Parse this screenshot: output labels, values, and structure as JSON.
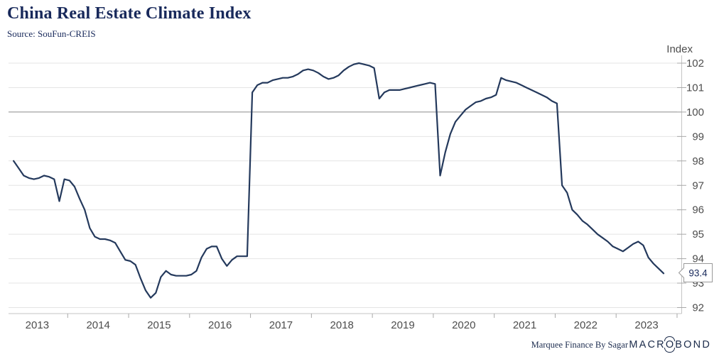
{
  "header": {
    "title": "China Real Estate Climate Index",
    "source": "Source: SouFun-CREIS"
  },
  "chart_data": {
    "type": "line",
    "title": "China Real Estate Climate Index",
    "xlabel": "",
    "ylabel": "Index",
    "ylim": [
      91.75,
      102.25
    ],
    "y_ticks": [
      92,
      93,
      94,
      95,
      96,
      97,
      98,
      99,
      100,
      101,
      102
    ],
    "emphasized_gridline": 100,
    "grid": true,
    "legend_position": "none",
    "x_tick_labels": [
      "2013",
      "2014",
      "2015",
      "2016",
      "2017",
      "2018",
      "2019",
      "2020",
      "2021",
      "2022",
      "2023"
    ],
    "frequency": "monthly",
    "start": "2013-02",
    "end": "2023-10",
    "series": [
      {
        "name": "China Real Estate Climate Index",
        "values": [
          98.0,
          97.7,
          97.4,
          97.3,
          97.25,
          97.3,
          97.4,
          97.35,
          97.25,
          96.35,
          97.25,
          97.2,
          96.95,
          96.45,
          96.0,
          95.25,
          94.9,
          94.8,
          94.8,
          94.75,
          94.65,
          94.3,
          93.95,
          93.9,
          93.75,
          93.2,
          92.7,
          92.4,
          92.6,
          93.25,
          93.5,
          93.35,
          93.3,
          93.3,
          93.3,
          93.35,
          93.5,
          94.05,
          94.4,
          94.5,
          94.5,
          94.0,
          93.7,
          93.95,
          94.1,
          94.1,
          94.1,
          100.8,
          101.1,
          101.2,
          101.2,
          101.3,
          101.35,
          101.4,
          101.4,
          101.45,
          101.55,
          101.7,
          101.75,
          101.7,
          101.6,
          101.45,
          101.35,
          101.4,
          101.5,
          101.7,
          101.85,
          101.95,
          102.0,
          101.95,
          101.9,
          101.8,
          100.55,
          100.8,
          100.9,
          100.9,
          100.9,
          100.95,
          101.0,
          101.05,
          101.1,
          101.15,
          101.2,
          101.15,
          97.4,
          98.35,
          99.1,
          99.6,
          99.85,
          100.1,
          100.25,
          100.4,
          100.45,
          100.55,
          100.6,
          100.7,
          101.4,
          101.3,
          101.25,
          101.2,
          101.1,
          101.0,
          100.9,
          100.8,
          100.7,
          100.6,
          100.45,
          100.35,
          97.0,
          96.7,
          96.0,
          95.8,
          95.55,
          95.4,
          95.2,
          95.0,
          94.85,
          94.7,
          94.5,
          94.4,
          94.3,
          94.45,
          94.6,
          94.7,
          94.55,
          94.05,
          93.8,
          93.6,
          93.4
        ]
      }
    ]
  },
  "callout": {
    "value": "93.4"
  },
  "footer": {
    "credit": "Marquee Finance By Sagar",
    "logo_pre": "MACR",
    "logo_o": "O",
    "logo_post": "BOND"
  },
  "colors": {
    "line": "#24395c",
    "title": "#18295b",
    "gridline": "#e4e4e4",
    "gridline_emphasized": "#8a8a8a",
    "axis": "#c4c4c4",
    "tick": "#a8a8a8",
    "tick_label": "#4d4d4d",
    "callout_border": "#999999",
    "callout_text": "#18295b",
    "logo": "#1b2b4a"
  }
}
